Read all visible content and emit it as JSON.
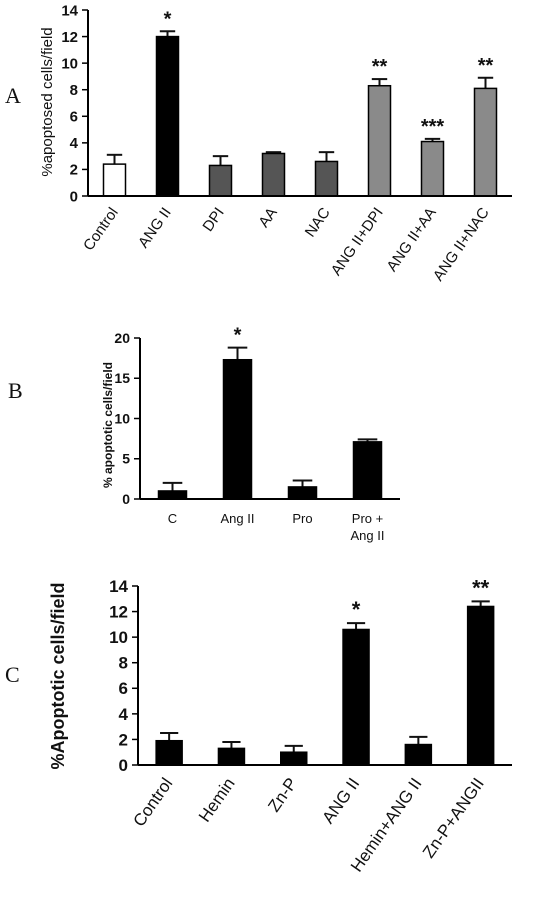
{
  "panels": [
    {
      "letter": "A"
    },
    {
      "letter": "B"
    },
    {
      "letter": "C"
    }
  ],
  "chart_data": [
    {
      "type": "bar",
      "panel": "A",
      "ylabel": "%apoptosed cells/field",
      "ylim": [
        0,
        14
      ],
      "yticks": [
        0,
        2,
        4,
        6,
        8,
        10,
        12,
        14
      ],
      "categories": [
        "Control",
        "ANG II",
        "DPI",
        "AA",
        "NAC",
        "ANG II+DPI",
        "ANG II+AA",
        "ANG II+NAC"
      ],
      "values": [
        2.4,
        12.0,
        2.3,
        3.2,
        2.6,
        8.3,
        4.1,
        8.1
      ],
      "errors": [
        0.7,
        0.4,
        0.7,
        0.1,
        0.7,
        0.5,
        0.2,
        0.8
      ],
      "significance": [
        "",
        "*",
        "",
        "",
        "",
        "**",
        "***",
        "**"
      ],
      "bar_colors": [
        "#ffffff",
        "#000000",
        "#555555",
        "#555555",
        "#555555",
        "#8a8a8a",
        "#8a8a8a",
        "#8a8a8a"
      ]
    },
    {
      "type": "bar",
      "panel": "B",
      "ylabel": "% apoptotic cells/field",
      "ylim": [
        0,
        20
      ],
      "yticks": [
        0,
        5,
        10,
        15,
        20
      ],
      "categories": [
        [
          "C"
        ],
        [
          "Ang II"
        ],
        [
          "Pro"
        ],
        [
          "Pro +",
          "Ang II"
        ]
      ],
      "values": [
        1.0,
        17.3,
        1.5,
        7.1
      ],
      "errors": [
        1.0,
        1.5,
        0.8,
        0.3
      ],
      "significance": [
        "",
        "*",
        "",
        ""
      ],
      "bar_colors": [
        "#000000",
        "#000000",
        "#000000",
        "#000000"
      ]
    },
    {
      "type": "bar",
      "panel": "C",
      "ylabel": "%Apoptotic cells/field",
      "ylim": [
        0,
        14
      ],
      "yticks": [
        0,
        2,
        4,
        6,
        8,
        10,
        12,
        14
      ],
      "categories": [
        "Control",
        "Hemin",
        "Zn-P",
        "ANG II",
        "Hemin+ANG II",
        "Zn-P+ANGII"
      ],
      "values": [
        1.9,
        1.3,
        1.0,
        10.6,
        1.6,
        12.4
      ],
      "errors": [
        0.6,
        0.5,
        0.5,
        0.5,
        0.6,
        0.4
      ],
      "significance": [
        "",
        "",
        "",
        "*",
        "",
        "**"
      ],
      "bar_colors": [
        "#000000",
        "#000000",
        "#000000",
        "#000000",
        "#000000",
        "#000000"
      ]
    }
  ]
}
